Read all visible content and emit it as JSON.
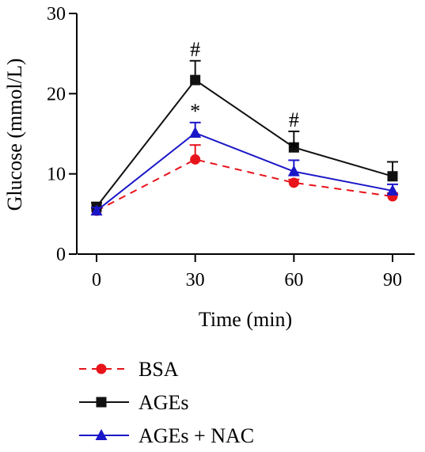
{
  "chart_data": {
    "type": "line",
    "xlabel": "Time (min)",
    "ylabel": "Glucose (mmol/L)",
    "x": [
      0,
      30,
      60,
      90
    ],
    "xlim": [
      -5,
      100
    ],
    "ylim": [
      0,
      30
    ],
    "xticks": [
      "0",
      "30",
      "60",
      "90"
    ],
    "yticks": [
      "0",
      "10",
      "20",
      "30"
    ],
    "grid": false,
    "legend_position": "bottom-left",
    "series": [
      {
        "name": "BSA",
        "color": "#e8131b",
        "line_style": "dashed",
        "marker": "circle",
        "values": [
          5.4,
          11.8,
          8.9,
          7.2
        ],
        "errors": [
          0.3,
          1.8,
          0.4,
          0.4
        ]
      },
      {
        "name": "AGEs",
        "color": "#111111",
        "line_style": "solid",
        "marker": "square",
        "values": [
          5.9,
          21.7,
          13.3,
          9.7
        ],
        "errors": [
          0.5,
          2.4,
          2.0,
          1.8
        ]
      },
      {
        "name": "AGEs + NAC",
        "color": "#1a16c8",
        "line_style": "solid",
        "marker": "triangle",
        "values": [
          5.4,
          15.1,
          10.3,
          7.9
        ],
        "errors": [
          0.4,
          1.3,
          1.4,
          0.8
        ]
      }
    ],
    "annotations": [
      {
        "text": "#",
        "x": 30,
        "series": "AGEs"
      },
      {
        "text": "*",
        "x": 30,
        "series": "AGEs + NAC"
      },
      {
        "text": "#",
        "x": 60,
        "series": "AGEs"
      },
      {
        "text": "*",
        "x": 60,
        "series": "AGEs + NAC"
      }
    ]
  }
}
